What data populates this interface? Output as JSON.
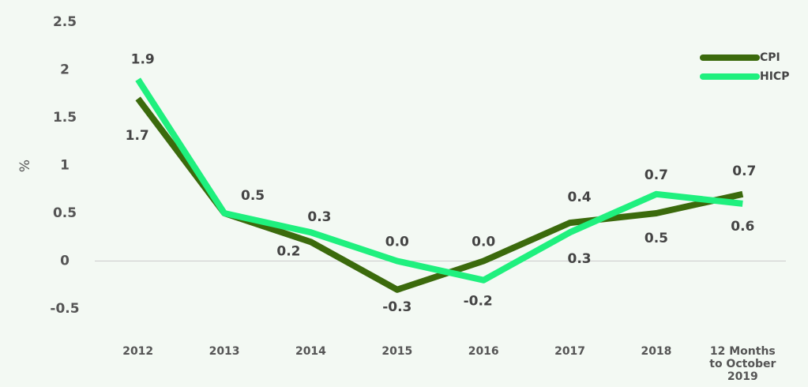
{
  "chart_data": {
    "type": "line",
    "y_label": "%",
    "categories": [
      "2012",
      "2013",
      "2014",
      "2015",
      "2016",
      "2017",
      "2018",
      "12 Months to October 2019"
    ],
    "series": [
      {
        "name": "CPI",
        "color": "#3b6a0c",
        "values": [
          1.7,
          0.5,
          0.2,
          -0.3,
          0.0,
          0.4,
          0.5,
          0.7
        ],
        "value_labels": [
          "1.7",
          "0.5",
          "0.2",
          "-0.3",
          "0.0",
          "0.4",
          "0.5",
          "0.7"
        ]
      },
      {
        "name": "HICP",
        "color": "#1ff07e",
        "values": [
          1.9,
          0.5,
          0.3,
          0.0,
          -0.2,
          0.3,
          0.7,
          0.6
        ],
        "value_labels": [
          "1.9",
          null,
          "0.3",
          "0.0",
          "-0.2",
          "0.3",
          "0.7",
          "0.6"
        ]
      }
    ],
    "ylim": [
      -0.5,
      2.5
    ],
    "yticks": [
      -0.5,
      0,
      0.5,
      1,
      1.5,
      2,
      2.5
    ],
    "zero_line": true,
    "legend": "top-right"
  }
}
